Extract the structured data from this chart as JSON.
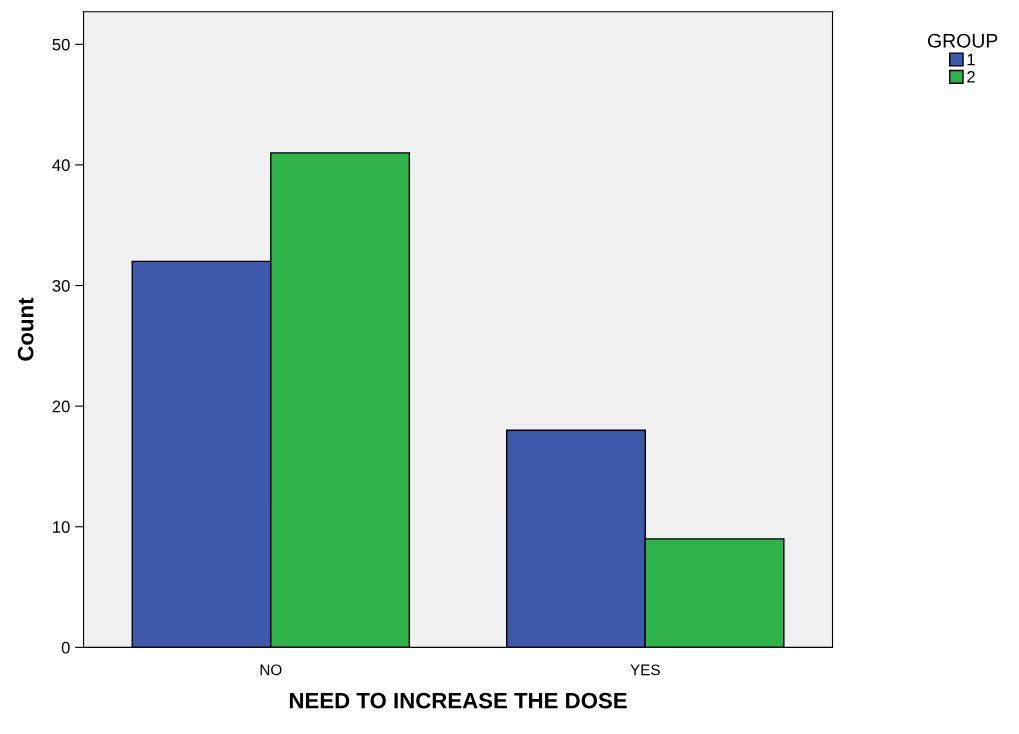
{
  "chart_data": {
    "type": "bar",
    "xlabel": "NEED TO INCREASE THE DOSE",
    "ylabel": "Count",
    "legend_title": "GROUP",
    "categories": [
      "NO",
      "YES"
    ],
    "series": [
      {
        "name": "1",
        "color": "#3e58ac",
        "values": [
          32,
          18
        ]
      },
      {
        "name": "2",
        "color": "#2db34a",
        "values": [
          41,
          9
        ]
      }
    ],
    "ylim": [
      0,
      52.7
    ],
    "yticks": [
      0,
      10,
      20,
      30,
      40,
      50
    ],
    "grid": false,
    "legend": "top right"
  }
}
